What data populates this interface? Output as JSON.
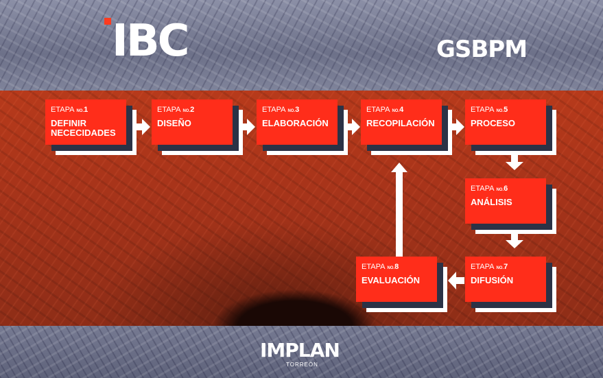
{
  "header": {
    "logo_left": "IBC",
    "logo_right": "GSBPM"
  },
  "footer": {
    "logo": "IMPLAN",
    "sublabel": "TORREÓN"
  },
  "stages": [
    {
      "prefix": "ETAPA",
      "no": "NO.",
      "num": "1",
      "title": "DEFINIR NECECIDADES"
    },
    {
      "prefix": "ETAPA",
      "no": "NO.",
      "num": "2",
      "title": "DISEÑO"
    },
    {
      "prefix": "ETAPA",
      "no": "NO.",
      "num": "3",
      "title": "ELABORACIÓN"
    },
    {
      "prefix": "ETAPA",
      "no": "NO.",
      "num": "4",
      "title": "RECOPILACIÓN"
    },
    {
      "prefix": "ETAPA",
      "no": "NO.",
      "num": "5",
      "title": "PROCESO"
    },
    {
      "prefix": "ETAPA",
      "no": "NO.",
      "num": "6",
      "title": "ANÁLISIS"
    },
    {
      "prefix": "ETAPA",
      "no": "NO.",
      "num": "7",
      "title": "DIFUSIÓN"
    },
    {
      "prefix": "ETAPA",
      "no": "NO.",
      "num": "8",
      "title": "EVALUACIÓN"
    }
  ],
  "colors": {
    "card": "#ff2d1a",
    "shadow": "#2b3246",
    "accent": "#ff3b1f"
  }
}
